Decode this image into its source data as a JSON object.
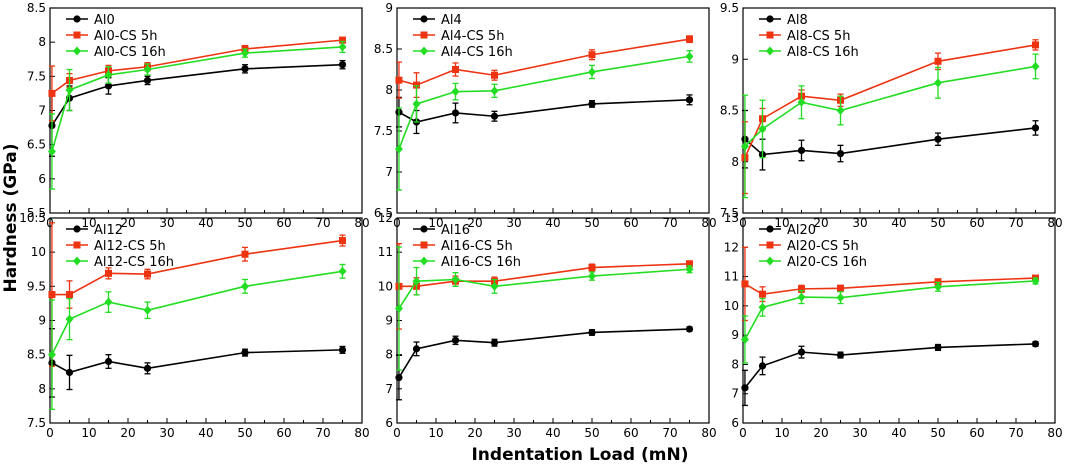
{
  "figure": {
    "ylabel": "Hardness (GPa)",
    "xlabel": "Indentation Load (mN)"
  },
  "chart_data": [
    {
      "type": "line",
      "title": "",
      "xlim": [
        0,
        80
      ],
      "xticks": [
        0,
        10,
        20,
        30,
        40,
        50,
        60,
        70,
        80
      ],
      "ylim": [
        5.5,
        8.5
      ],
      "yticks": [
        5.5,
        6,
        6.5,
        7,
        7.5,
        8,
        8.5
      ],
      "x": [
        0.5,
        5,
        15,
        25,
        50,
        75
      ],
      "series": [
        {
          "name": "Al0",
          "color": "#000000",
          "marker": "circle",
          "values": [
            6.78,
            7.18,
            7.36,
            7.44,
            7.61,
            7.67
          ],
          "errors": [
            0.45,
            0.18,
            0.12,
            0.06,
            0.06,
            0.06
          ]
        },
        {
          "name": "Al0-CS 5h",
          "color": "#ee3311",
          "marker": "square",
          "values": [
            7.25,
            7.44,
            7.58,
            7.64,
            7.9,
            8.03
          ],
          "errors": [
            0.4,
            0.1,
            0.08,
            0.06,
            0.05,
            0.04
          ]
        },
        {
          "name": "Al0-CS 16h",
          "color": "#22dd22",
          "marker": "diamond",
          "values": [
            6.4,
            7.3,
            7.52,
            7.6,
            7.84,
            7.93
          ],
          "errors": [
            0.55,
            0.3,
            0.12,
            0.08,
            0.06,
            0.08
          ]
        }
      ]
    },
    {
      "type": "line",
      "title": "",
      "xlim": [
        0,
        80
      ],
      "xticks": [
        0,
        10,
        20,
        30,
        40,
        50,
        60,
        70,
        80
      ],
      "ylim": [
        6.5,
        9
      ],
      "yticks": [
        6.5,
        7,
        7.5,
        8,
        8.5,
        9
      ],
      "x": [
        0.5,
        5,
        15,
        25,
        50,
        75
      ],
      "series": [
        {
          "name": "Al4",
          "color": "#000000",
          "marker": "circle",
          "values": [
            7.73,
            7.61,
            7.72,
            7.68,
            7.83,
            7.88
          ],
          "errors": [
            0.18,
            0.14,
            0.12,
            0.06,
            0.04,
            0.06
          ]
        },
        {
          "name": "Al4-CS 5h",
          "color": "#ee3311",
          "marker": "square",
          "values": [
            8.12,
            8.06,
            8.25,
            8.18,
            8.43,
            8.62
          ],
          "errors": [
            0.22,
            0.15,
            0.08,
            0.06,
            0.06,
            0.04
          ]
        },
        {
          "name": "Al4-CS 16h",
          "color": "#22dd22",
          "marker": "diamond",
          "values": [
            7.28,
            7.83,
            7.98,
            7.99,
            8.22,
            8.41
          ],
          "errors": [
            0.5,
            0.22,
            0.1,
            0.08,
            0.08,
            0.07
          ]
        }
      ]
    },
    {
      "type": "line",
      "title": "",
      "xlim": [
        0,
        80
      ],
      "xticks": [
        0,
        10,
        20,
        30,
        40,
        50,
        60,
        70,
        80
      ],
      "ylim": [
        7.5,
        9.5
      ],
      "yticks": [
        7.5,
        8,
        8.5,
        9,
        9.5
      ],
      "x": [
        0.5,
        5,
        15,
        25,
        50,
        75
      ],
      "series": [
        {
          "name": "Al8",
          "color": "#000000",
          "marker": "circle",
          "values": [
            8.22,
            8.07,
            8.11,
            8.08,
            8.22,
            8.33
          ],
          "errors": [
            0.28,
            0.15,
            0.1,
            0.08,
            0.06,
            0.07
          ]
        },
        {
          "name": "Al8-CS 5h",
          "color": "#ee3311",
          "marker": "square",
          "values": [
            8.04,
            8.42,
            8.64,
            8.6,
            8.98,
            9.14
          ],
          "errors": [
            0.35,
            0.1,
            0.06,
            0.06,
            0.08,
            0.05
          ]
        },
        {
          "name": "Al8-CS 16h",
          "color": "#22dd22",
          "marker": "diamond",
          "values": [
            8.15,
            8.32,
            8.58,
            8.5,
            8.77,
            8.93
          ],
          "errors": [
            0.5,
            0.28,
            0.16,
            0.14,
            0.15,
            0.12
          ]
        }
      ]
    },
    {
      "type": "line",
      "title": "",
      "xlim": [
        0,
        80
      ],
      "xticks": [
        0,
        10,
        20,
        30,
        40,
        50,
        60,
        70,
        80
      ],
      "ylim": [
        7.5,
        10.5
      ],
      "yticks": [
        7.5,
        8,
        8.5,
        9,
        9.5,
        10,
        10.5
      ],
      "x": [
        0.5,
        5,
        15,
        25,
        50,
        75
      ],
      "series": [
        {
          "name": "Al12",
          "color": "#000000",
          "marker": "circle",
          "values": [
            8.38,
            8.24,
            8.4,
            8.3,
            8.53,
            8.57
          ],
          "errors": [
            0.5,
            0.25,
            0.1,
            0.08,
            0.05,
            0.05
          ]
        },
        {
          "name": "Al12-CS 5h",
          "color": "#ee3311",
          "marker": "square",
          "values": [
            9.38,
            9.38,
            9.69,
            9.68,
            9.97,
            10.17
          ],
          "errors": [
            1.05,
            0.2,
            0.08,
            0.07,
            0.1,
            0.08
          ]
        },
        {
          "name": "Al12-CS 16h",
          "color": "#22dd22",
          "marker": "diamond",
          "values": [
            8.5,
            9.02,
            9.27,
            9.15,
            9.5,
            9.72
          ],
          "errors": [
            0.8,
            0.3,
            0.15,
            0.12,
            0.1,
            0.1
          ]
        }
      ]
    },
    {
      "type": "line",
      "title": "",
      "xlim": [
        0,
        80
      ],
      "xticks": [
        0,
        10,
        20,
        30,
        40,
        50,
        60,
        70,
        80
      ],
      "ylim": [
        6,
        12
      ],
      "yticks": [
        6,
        7,
        8,
        9,
        10,
        11,
        12
      ],
      "x": [
        0.5,
        5,
        15,
        25,
        50,
        75
      ],
      "series": [
        {
          "name": "Al16",
          "color": "#000000",
          "marker": "circle",
          "values": [
            7.33,
            8.17,
            8.42,
            8.35,
            8.65,
            8.75
          ],
          "errors": [
            0.65,
            0.2,
            0.12,
            0.1,
            0.08,
            0.06
          ]
        },
        {
          "name": "Al16-CS 5h",
          "color": "#ee3311",
          "marker": "square",
          "values": [
            10.0,
            10.0,
            10.15,
            10.15,
            10.55,
            10.66
          ],
          "errors": [
            1.25,
            0.25,
            0.15,
            0.12,
            0.1,
            0.08
          ]
        },
        {
          "name": "Al16-CS 16h",
          "color": "#22dd22",
          "marker": "diamond",
          "values": [
            9.35,
            10.15,
            10.2,
            10.0,
            10.3,
            10.5
          ],
          "errors": [
            1.8,
            0.4,
            0.2,
            0.2,
            0.12,
            0.1
          ]
        }
      ]
    },
    {
      "type": "line",
      "title": "",
      "xlim": [
        0,
        80
      ],
      "xticks": [
        0,
        10,
        20,
        30,
        40,
        50,
        60,
        70,
        80
      ],
      "ylim": [
        6,
        13
      ],
      "yticks": [
        6,
        7,
        8,
        9,
        10,
        11,
        12,
        13
      ],
      "x": [
        0.5,
        5,
        15,
        25,
        50,
        75
      ],
      "series": [
        {
          "name": "Al20",
          "color": "#000000",
          "marker": "circle",
          "values": [
            7.2,
            7.95,
            8.42,
            8.32,
            8.58,
            8.7
          ],
          "errors": [
            0.6,
            0.3,
            0.2,
            0.1,
            0.1,
            0.08
          ]
        },
        {
          "name": "Al20-CS 5h",
          "color": "#ee3311",
          "marker": "square",
          "values": [
            10.75,
            10.4,
            10.58,
            10.6,
            10.82,
            10.95
          ],
          "errors": [
            1.25,
            0.25,
            0.12,
            0.1,
            0.1,
            0.08
          ]
        },
        {
          "name": "Al20-CS 16h",
          "color": "#22dd22",
          "marker": "diamond",
          "values": [
            8.85,
            9.95,
            10.3,
            10.28,
            10.65,
            10.85
          ],
          "errors": [
            0.8,
            0.3,
            0.22,
            0.2,
            0.15,
            0.1
          ]
        }
      ]
    }
  ]
}
